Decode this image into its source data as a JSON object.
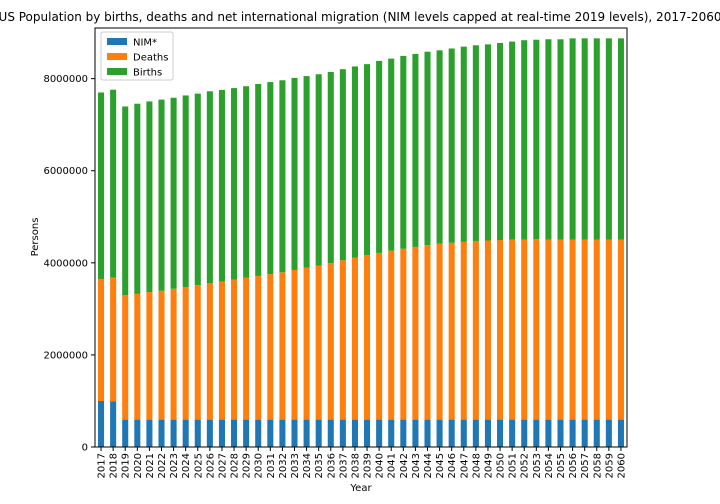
{
  "chart_data": {
    "type": "bar",
    "stacked": true,
    "title": "US Population by births, deaths and net international migration (NIM levels capped at real-time 2019 levels), 2017-2060",
    "xlabel": "Year",
    "ylabel": "Persons",
    "ylim": [
      0,
      9100000
    ],
    "yticks": [
      0,
      2000000,
      4000000,
      6000000,
      8000000
    ],
    "legend_position": "top-left",
    "grid": false,
    "categories": [
      "2017",
      "2018",
      "2019",
      "2020",
      "2021",
      "2022",
      "2023",
      "2024",
      "2025",
      "2026",
      "2027",
      "2028",
      "2029",
      "2030",
      "2031",
      "2032",
      "2033",
      "2034",
      "2035",
      "2036",
      "2037",
      "2038",
      "2039",
      "2040",
      "2041",
      "2042",
      "2043",
      "2044",
      "2045",
      "2046",
      "2047",
      "2048",
      "2049",
      "2050",
      "2051",
      "2052",
      "2053",
      "2054",
      "2055",
      "2056",
      "2057",
      "2058",
      "2059",
      "2060"
    ],
    "series": [
      {
        "name": "NIM*",
        "color": "#1f77b4",
        "values": [
          1000000,
          990000,
          595000,
          595000,
          595000,
          595000,
          595000,
          595000,
          595000,
          595000,
          595000,
          595000,
          595000,
          595000,
          595000,
          595000,
          595000,
          595000,
          595000,
          595000,
          595000,
          595000,
          595000,
          595000,
          595000,
          595000,
          595000,
          595000,
          595000,
          595000,
          595000,
          595000,
          595000,
          595000,
          595000,
          595000,
          595000,
          595000,
          595000,
          595000,
          595000,
          595000,
          595000,
          595000
        ]
      },
      {
        "name": "Deaths",
        "color": "#ff7f0e",
        "values": [
          2650000,
          2690000,
          2700000,
          2730000,
          2770000,
          2800000,
          2840000,
          2880000,
          2920000,
          2960000,
          3000000,
          3040000,
          3080000,
          3120000,
          3160000,
          3200000,
          3250000,
          3300000,
          3340000,
          3400000,
          3460000,
          3520000,
          3570000,
          3620000,
          3670000,
          3710000,
          3750000,
          3790000,
          3820000,
          3840000,
          3860000,
          3880000,
          3890000,
          3900000,
          3910000,
          3910000,
          3920000,
          3910000,
          3910000,
          3910000,
          3910000,
          3910000,
          3910000,
          3910000
        ]
      },
      {
        "name": "Births",
        "color": "#2ca02c",
        "values": [
          4050000,
          4080000,
          4100000,
          4130000,
          4140000,
          4150000,
          4150000,
          4160000,
          4160000,
          4170000,
          4160000,
          4160000,
          4160000,
          4170000,
          4170000,
          4170000,
          4170000,
          4160000,
          4160000,
          4150000,
          4150000,
          4150000,
          4150000,
          4170000,
          4170000,
          4190000,
          4190000,
          4200000,
          4200000,
          4220000,
          4240000,
          4250000,
          4260000,
          4280000,
          4300000,
          4330000,
          4330000,
          4350000,
          4350000,
          4370000,
          4370000,
          4370000,
          4370000,
          4370000
        ]
      }
    ]
  }
}
